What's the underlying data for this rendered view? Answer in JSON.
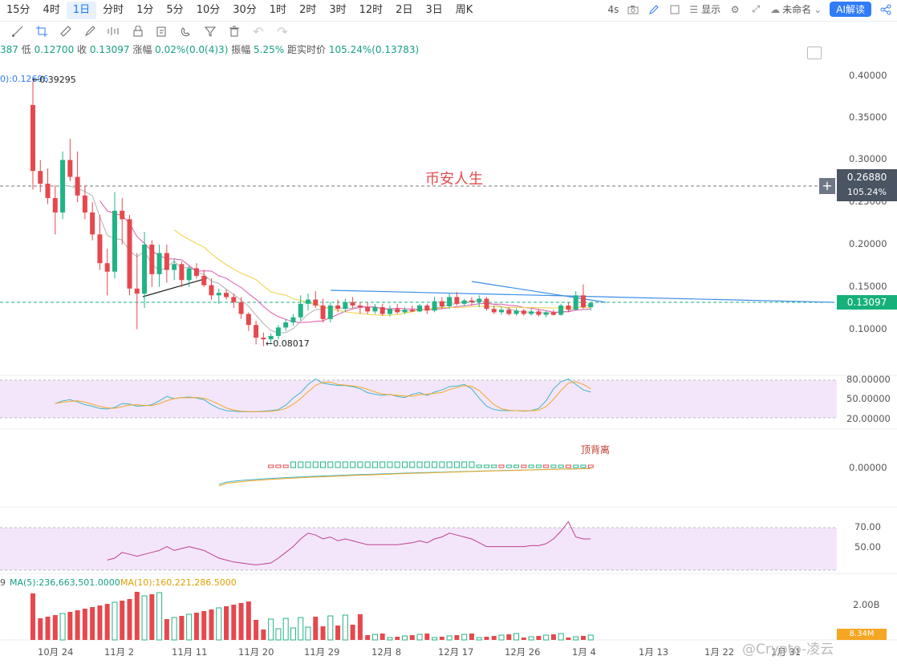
{
  "toolbar": {
    "timeframes": [
      "15分",
      "4时",
      "1日",
      "分时",
      "1分",
      "5分",
      "10分",
      "30分",
      "1时",
      "2时",
      "3时",
      "12时",
      "2日",
      "3日",
      "周K"
    ],
    "active": "1日",
    "refresh": "4s",
    "display_label": "显示",
    "layout_name": "未命名",
    "ai_label": "AI解读"
  },
  "info": {
    "prefix": "387",
    "low_label": "低",
    "low": "0.12700",
    "close_label": "收",
    "close": "0.13097",
    "change_label": "涨幅",
    "change": "0.02%(0.0(4)3)",
    "amplitude_label": "振幅",
    "amplitude": "5.25%",
    "dist_label": "距实时价",
    "dist": "105.24%(0.13783)"
  },
  "ma_label": "0):0.12696",
  "price_axis": [
    "0.40000",
    "0.35000",
    "0.30000",
    "0.25000",
    "0.20000",
    "0.15000",
    "0.10000"
  ],
  "price_tags": {
    "crosshair_price": "0.26880",
    "crosshair_pct": "105.24%",
    "last_price": "0.13097"
  },
  "annotations": {
    "high": "0.39295",
    "low": "0.08017",
    "watermark": "币安人生",
    "divergence": "顶背离"
  },
  "kdj_axis": [
    "80.00000",
    "50.00000",
    "20.00000"
  ],
  "macd_axis": [
    "0.00000"
  ],
  "rsi_axis": [
    "70.00",
    "50.00"
  ],
  "volume": {
    "axis": "2.00B",
    "prefix": "9",
    "ma5_label": "MA(5):236,663,501.0000",
    "ma10_label": "MA(10):160,221,286.5000",
    "tag": "8.34M"
  },
  "date_axis": [
    "10月 24",
    "11月 2",
    "11月 11",
    "11月 20",
    "11月 29",
    "12月 8",
    "12月 17",
    "12月 26",
    "1月 4",
    "1月 13",
    "1月 22",
    "1月 31"
  ],
  "credit": "@Crypto-凌云",
  "chart_data": {
    "type": "candlestick",
    "dates": [
      "10-22",
      "10-23",
      "10-24",
      "10-25",
      "10-26",
      "10-27",
      "10-28",
      "10-29",
      "10-30",
      "10-31",
      "11-01",
      "11-02",
      "11-03",
      "11-04",
      "11-05",
      "11-06",
      "11-07",
      "11-08",
      "11-09",
      "11-10",
      "11-11",
      "11-12",
      "11-13",
      "11-14",
      "11-15",
      "11-16",
      "11-17",
      "11-18",
      "11-19",
      "11-20",
      "11-21",
      "11-22",
      "11-23",
      "11-24",
      "11-25",
      "11-26",
      "11-27",
      "11-28",
      "11-29",
      "11-30",
      "12-01",
      "12-02",
      "12-03",
      "12-04",
      "12-05",
      "12-06",
      "12-07",
      "12-08",
      "12-09",
      "12-10",
      "12-11",
      "12-12",
      "12-13",
      "12-14",
      "12-15",
      "12-16",
      "12-17",
      "12-18",
      "12-19",
      "12-20",
      "12-21",
      "12-22",
      "12-23",
      "12-24",
      "12-25",
      "12-26",
      "12-27",
      "12-28",
      "12-29",
      "12-30",
      "12-31",
      "01-01",
      "01-02",
      "01-03",
      "01-04",
      "01-05"
    ],
    "ohlc": [
      [
        0.365,
        0.393,
        0.265,
        0.287
      ],
      [
        0.287,
        0.3,
        0.262,
        0.272
      ],
      [
        0.272,
        0.29,
        0.248,
        0.255
      ],
      [
        0.255,
        0.27,
        0.212,
        0.238
      ],
      [
        0.238,
        0.31,
        0.23,
        0.3
      ],
      [
        0.3,
        0.325,
        0.275,
        0.28
      ],
      [
        0.28,
        0.31,
        0.25,
        0.258
      ],
      [
        0.258,
        0.27,
        0.23,
        0.238
      ],
      [
        0.238,
        0.25,
        0.205,
        0.212
      ],
      [
        0.212,
        0.235,
        0.17,
        0.178
      ],
      [
        0.178,
        0.195,
        0.14,
        0.168
      ],
      [
        0.168,
        0.262,
        0.16,
        0.24
      ],
      [
        0.24,
        0.255,
        0.2,
        0.23
      ],
      [
        0.23,
        0.235,
        0.14,
        0.148
      ],
      [
        0.148,
        0.19,
        0.1,
        0.142
      ],
      [
        0.142,
        0.215,
        0.125,
        0.2
      ],
      [
        0.2,
        0.205,
        0.15,
        0.165
      ],
      [
        0.165,
        0.2,
        0.15,
        0.19
      ],
      [
        0.19,
        0.2,
        0.155,
        0.17
      ],
      [
        0.17,
        0.183,
        0.158,
        0.177
      ],
      [
        0.177,
        0.18,
        0.15,
        0.158
      ],
      [
        0.158,
        0.175,
        0.15,
        0.172
      ],
      [
        0.172,
        0.178,
        0.16,
        0.163
      ],
      [
        0.163,
        0.17,
        0.15,
        0.152
      ],
      [
        0.152,
        0.16,
        0.135,
        0.14
      ],
      [
        0.14,
        0.148,
        0.13,
        0.143
      ],
      [
        0.143,
        0.147,
        0.135,
        0.138
      ],
      [
        0.138,
        0.142,
        0.125,
        0.132
      ],
      [
        0.132,
        0.138,
        0.112,
        0.118
      ],
      [
        0.118,
        0.12,
        0.098,
        0.105
      ],
      [
        0.105,
        0.11,
        0.082,
        0.09
      ],
      [
        0.09,
        0.096,
        0.08,
        0.088
      ],
      [
        0.088,
        0.095,
        0.082,
        0.092
      ],
      [
        0.092,
        0.105,
        0.088,
        0.102
      ],
      [
        0.102,
        0.112,
        0.098,
        0.108
      ],
      [
        0.108,
        0.118,
        0.104,
        0.114
      ],
      [
        0.114,
        0.14,
        0.11,
        0.13
      ],
      [
        0.13,
        0.142,
        0.122,
        0.135
      ],
      [
        0.135,
        0.145,
        0.125,
        0.128
      ],
      [
        0.128,
        0.136,
        0.108,
        0.112
      ],
      [
        0.112,
        0.132,
        0.108,
        0.128
      ],
      [
        0.128,
        0.135,
        0.12,
        0.124
      ],
      [
        0.124,
        0.136,
        0.12,
        0.132
      ],
      [
        0.132,
        0.138,
        0.125,
        0.128
      ],
      [
        0.128,
        0.132,
        0.118,
        0.126
      ],
      [
        0.126,
        0.132,
        0.118,
        0.121
      ],
      [
        0.121,
        0.13,
        0.118,
        0.126
      ],
      [
        0.126,
        0.13,
        0.116,
        0.118
      ],
      [
        0.118,
        0.128,
        0.115,
        0.124
      ],
      [
        0.124,
        0.13,
        0.118,
        0.12
      ],
      [
        0.12,
        0.126,
        0.118,
        0.123
      ],
      [
        0.123,
        0.128,
        0.12,
        0.121
      ],
      [
        0.121,
        0.13,
        0.12,
        0.128
      ],
      [
        0.128,
        0.13,
        0.118,
        0.122
      ],
      [
        0.122,
        0.138,
        0.12,
        0.133
      ],
      [
        0.133,
        0.138,
        0.124,
        0.127
      ],
      [
        0.127,
        0.142,
        0.124,
        0.138
      ],
      [
        0.138,
        0.144,
        0.128,
        0.13
      ],
      [
        0.13,
        0.136,
        0.127,
        0.134
      ],
      [
        0.134,
        0.138,
        0.128,
        0.132
      ],
      [
        0.132,
        0.14,
        0.126,
        0.136
      ],
      [
        0.136,
        0.138,
        0.122,
        0.124
      ],
      [
        0.124,
        0.128,
        0.118,
        0.12
      ],
      [
        0.12,
        0.126,
        0.117,
        0.123
      ],
      [
        0.123,
        0.126,
        0.116,
        0.118
      ],
      [
        0.118,
        0.125,
        0.116,
        0.122
      ],
      [
        0.122,
        0.124,
        0.116,
        0.118
      ],
      [
        0.118,
        0.124,
        0.116,
        0.121
      ],
      [
        0.121,
        0.124,
        0.115,
        0.117
      ],
      [
        0.117,
        0.122,
        0.114,
        0.12
      ],
      [
        0.12,
        0.123,
        0.116,
        0.117
      ],
      [
        0.117,
        0.13,
        0.116,
        0.128
      ],
      [
        0.128,
        0.132,
        0.12,
        0.123
      ],
      [
        0.123,
        0.145,
        0.122,
        0.14
      ],
      [
        0.14,
        0.153,
        0.124,
        0.126
      ],
      [
        0.126,
        0.132,
        0.122,
        0.131
      ]
    ],
    "kdj": [
      22,
      24,
      28,
      35,
      40,
      42,
      38,
      33,
      30,
      26,
      25,
      28,
      35,
      34,
      30,
      31,
      33,
      40,
      48,
      44,
      46,
      47,
      45,
      42,
      33,
      26,
      22,
      21,
      20,
      20,
      20,
      21,
      22,
      24,
      32,
      45,
      55,
      70,
      80,
      72,
      70,
      68,
      68,
      66,
      62,
      55,
      52,
      50,
      52,
      48,
      46,
      52,
      55,
      50,
      56,
      60,
      66,
      67,
      70,
      62,
      45,
      30,
      24,
      22,
      22,
      22,
      21,
      22,
      26,
      40,
      62,
      75,
      80,
      70,
      60,
      56
    ],
    "rsi": [
      48,
      52,
      54,
      49,
      46,
      44,
      42,
      40,
      39,
      40,
      38,
      40,
      46,
      44,
      42,
      44,
      46,
      48,
      52,
      48,
      50,
      52,
      50,
      48,
      44,
      40,
      38,
      36,
      35,
      34,
      33,
      34,
      35,
      40,
      46,
      52,
      60,
      66,
      64,
      60,
      62,
      58,
      60,
      58,
      56,
      54,
      54,
      54,
      54,
      54,
      55,
      56,
      58,
      56,
      60,
      62,
      66,
      64,
      62,
      60,
      56,
      52,
      52,
      52,
      52,
      52,
      52,
      53,
      53,
      55,
      60,
      68,
      78,
      62,
      60,
      60
    ]
  }
}
